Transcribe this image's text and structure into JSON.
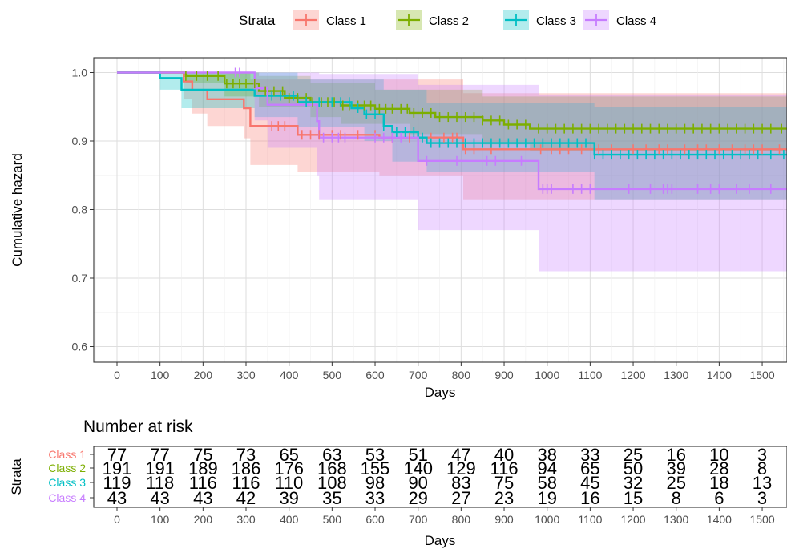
{
  "chart_data": [
    {
      "type": "line",
      "subtype": "kaplan-meier-step",
      "title": "",
      "xlabel": "Days",
      "ylabel": "Cumulative hazard",
      "xlim": [
        -30,
        1560
      ],
      "ylim": [
        0.585,
        1.02
      ],
      "x_ticks": [
        "0",
        "100",
        "200",
        "300",
        "400",
        "500",
        "600",
        "700",
        "800",
        "900",
        "1000",
        "1100",
        "1200",
        "1300",
        "1400",
        "1500"
      ],
      "y_ticks": [
        "0.6",
        "0.7",
        "0.8",
        "0.9",
        "1.0"
      ],
      "grid": true,
      "legend": {
        "title": "Strata",
        "position": "top",
        "entries": [
          "Class 1",
          "Class 2",
          "Class 3",
          "Class 4"
        ]
      },
      "colors": [
        "#F8766D",
        "#7CAE00",
        "#00BFC4",
        "#C77CFF"
      ],
      "series": [
        {
          "name": "Class 1",
          "steps": [
            [
              0,
              1.0
            ],
            [
              155,
              0.987
            ],
            [
              175,
              0.974
            ],
            [
              210,
              0.961
            ],
            [
              295,
              0.948
            ],
            [
              310,
              0.922
            ],
            [
              420,
              0.909
            ],
            [
              610,
              0.905
            ],
            [
              805,
              0.888
            ],
            [
              1560,
              0.888
            ]
          ],
          "lower": [
            [
              0,
              1.0
            ],
            [
              155,
              0.962
            ],
            [
              175,
              0.94
            ],
            [
              210,
              0.922
            ],
            [
              295,
              0.904
            ],
            [
              310,
              0.865
            ],
            [
              420,
              0.855
            ],
            [
              610,
              0.85
            ],
            [
              805,
              0.815
            ],
            [
              1560,
              0.815
            ]
          ],
          "upper": [
            [
              0,
              1.0
            ],
            [
              155,
              1.0
            ],
            [
              310,
              0.99
            ],
            [
              420,
              0.99
            ],
            [
              805,
              0.97
            ],
            [
              1560,
              0.965
            ]
          ],
          "censored": [
            360,
            375,
            390,
            430,
            450,
            470,
            500,
            520,
            560,
            600,
            640,
            680,
            730,
            760,
            780,
            790,
            810,
            830,
            870,
            985,
            1010,
            1030,
            1050,
            1080,
            1120,
            1150,
            1200,
            1230,
            1260,
            1280,
            1320,
            1350,
            1370,
            1400,
            1430,
            1460,
            1480,
            1500,
            1540
          ]
        },
        {
          "name": "Class 2",
          "steps": [
            [
              0,
              1.0
            ],
            [
              160,
              0.995
            ],
            [
              250,
              0.984
            ],
            [
              330,
              0.973
            ],
            [
              390,
              0.963
            ],
            [
              450,
              0.957
            ],
            [
              520,
              0.952
            ],
            [
              600,
              0.947
            ],
            [
              680,
              0.941
            ],
            [
              740,
              0.935
            ],
            [
              850,
              0.93
            ],
            [
              900,
              0.924
            ],
            [
              960,
              0.918
            ],
            [
              1560,
              0.918
            ]
          ],
          "lower": [
            [
              0,
              1.0
            ],
            [
              160,
              0.985
            ],
            [
              250,
              0.965
            ],
            [
              330,
              0.95
            ],
            [
              450,
              0.935
            ],
            [
              520,
              0.925
            ],
            [
              680,
              0.91
            ],
            [
              850,
              0.895
            ],
            [
              960,
              0.885
            ],
            [
              1560,
              0.875
            ]
          ],
          "upper": [
            [
              0,
              1.0
            ],
            [
              330,
              0.995
            ],
            [
              450,
              0.985
            ],
            [
              600,
              0.975
            ],
            [
              850,
              0.965
            ],
            [
              1560,
              0.955
            ]
          ],
          "censored": [
            160,
            185,
            210,
            235,
            255,
            270,
            285,
            300,
            320,
            345,
            365,
            385,
            400,
            420,
            440,
            455,
            475,
            490,
            505,
            525,
            540,
            560,
            575,
            590,
            610,
            625,
            640,
            660,
            675,
            690,
            710,
            730,
            750,
            770,
            790,
            810,
            830,
            850,
            870,
            890,
            910,
            930,
            950,
            980,
            1000,
            1020,
            1040,
            1060,
            1080,
            1100,
            1120,
            1140,
            1160,
            1180,
            1200,
            1220,
            1240,
            1260,
            1280,
            1300,
            1320,
            1340,
            1360,
            1380,
            1400,
            1420,
            1440,
            1460,
            1480,
            1500,
            1520,
            1545
          ]
        },
        {
          "name": "Class 3",
          "steps": [
            [
              0,
              1.0
            ],
            [
              100,
              0.992
            ],
            [
              150,
              0.975
            ],
            [
              320,
              0.966
            ],
            [
              420,
              0.957
            ],
            [
              545,
              0.948
            ],
            [
              575,
              0.939
            ],
            [
              620,
              0.922
            ],
            [
              640,
              0.913
            ],
            [
              700,
              0.905
            ],
            [
              720,
              0.897
            ],
            [
              1110,
              0.88
            ],
            [
              1560,
              0.88
            ]
          ],
          "lower": [
            [
              0,
              1.0
            ],
            [
              100,
              0.975
            ],
            [
              150,
              0.948
            ],
            [
              320,
              0.935
            ],
            [
              420,
              0.92
            ],
            [
              575,
              0.9
            ],
            [
              640,
              0.87
            ],
            [
              720,
              0.855
            ],
            [
              1110,
              0.815
            ],
            [
              1560,
              0.815
            ]
          ],
          "upper": [
            [
              0,
              1.0
            ],
            [
              420,
              0.99
            ],
            [
              620,
              0.975
            ],
            [
              720,
              0.955
            ],
            [
              1110,
              0.95
            ],
            [
              1560,
              0.945
            ]
          ],
          "censored": [
            360,
            380,
            410,
            440,
            470,
            500,
            520,
            540,
            560,
            580,
            600,
            620,
            650,
            670,
            690,
            710,
            730,
            750,
            770,
            790,
            810,
            830,
            850,
            870,
            890,
            910,
            930,
            950,
            970,
            990,
            1010,
            1030,
            1050,
            1070,
            1090,
            1110,
            1130,
            1150,
            1170,
            1190,
            1210,
            1230,
            1250,
            1270,
            1290,
            1310,
            1330,
            1350,
            1370,
            1390,
            1410,
            1430,
            1450,
            1470,
            1490,
            1520,
            1550
          ]
        },
        {
          "name": "Class 4",
          "steps": [
            [
              0,
              1.0
            ],
            [
              320,
              0.977
            ],
            [
              350,
              0.953
            ],
            [
              465,
              0.929
            ],
            [
              470,
              0.905
            ],
            [
              605,
              0.905
            ],
            [
              700,
              0.871
            ],
            [
              980,
              0.83
            ],
            [
              1560,
              0.83
            ]
          ],
          "lower": [
            [
              0,
              1.0
            ],
            [
              320,
              0.93
            ],
            [
              350,
              0.89
            ],
            [
              465,
              0.85
            ],
            [
              470,
              0.815
            ],
            [
              700,
              0.77
            ],
            [
              980,
              0.71
            ],
            [
              1560,
              0.71
            ]
          ],
          "upper": [
            [
              0,
              1.0
            ],
            [
              470,
              0.998
            ],
            [
              700,
              0.982
            ],
            [
              980,
              0.968
            ],
            [
              1560,
              0.968
            ]
          ],
          "censored": [
            275,
            285,
            480,
            500,
            515,
            530,
            600,
            620,
            640,
            660,
            720,
            790,
            860,
            880,
            940,
            990,
            1000,
            1010,
            1060,
            1080,
            1100,
            1190,
            1240,
            1270,
            1280,
            1290,
            1350,
            1380,
            1400,
            1440,
            1470,
            1520
          ]
        }
      ]
    },
    {
      "type": "table",
      "title": "Number at risk",
      "xlabel": "Days",
      "ylabel": "Strata",
      "x_ticks": [
        "0",
        "100",
        "200",
        "300",
        "400",
        "500",
        "600",
        "700",
        "800",
        "900",
        "1000",
        "1100",
        "1200",
        "1300",
        "1400",
        "1500"
      ],
      "rows": [
        {
          "name": "Class 1",
          "values": [
            "77",
            "77",
            "75",
            "73",
            "65",
            "63",
            "53",
            "51",
            "47",
            "40",
            "38",
            "33",
            "25",
            "16",
            "10",
            "3"
          ]
        },
        {
          "name": "Class 2",
          "values": [
            "191",
            "191",
            "189",
            "186",
            "176",
            "168",
            "155",
            "140",
            "129",
            "116",
            "94",
            "65",
            "50",
            "39",
            "28",
            "8"
          ]
        },
        {
          "name": "Class 3",
          "values": [
            "119",
            "118",
            "116",
            "116",
            "110",
            "108",
            "98",
            "90",
            "83",
            "75",
            "58",
            "45",
            "32",
            "25",
            "18",
            "13"
          ]
        },
        {
          "name": "Class 4",
          "values": [
            "43",
            "43",
            "43",
            "42",
            "39",
            "35",
            "33",
            "29",
            "27",
            "23",
            "19",
            "16",
            "15",
            "8",
            "6",
            "3"
          ]
        }
      ]
    }
  ]
}
